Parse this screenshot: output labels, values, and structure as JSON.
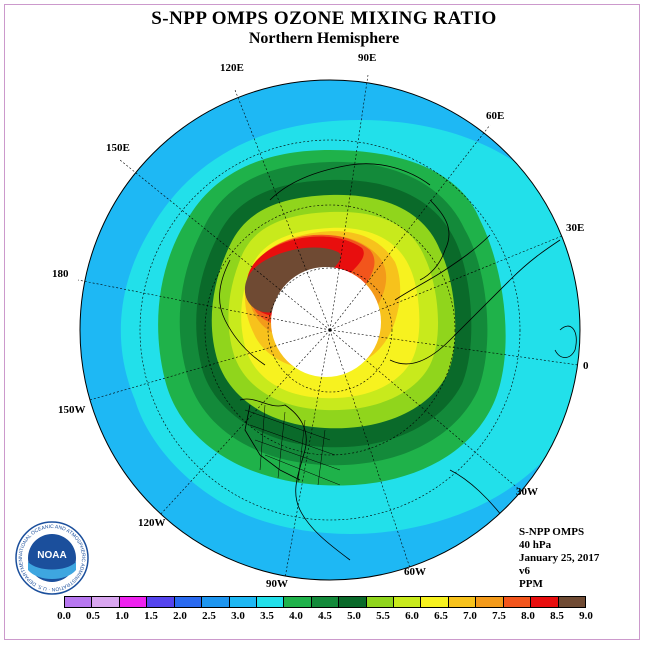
{
  "header": {
    "title": "S-NPP OMPS OZONE MIXING RATIO",
    "subtitle": "Northern Hemisphere"
  },
  "map": {
    "projection": "north polar stereographic",
    "longitude_labels": [
      {
        "text": "90E",
        "lon": 90
      },
      {
        "text": "60E",
        "lon": 60
      },
      {
        "text": "30E",
        "lon": 30
      },
      {
        "text": "0",
        "lon": 0
      },
      {
        "text": "30W",
        "lon": -30
      },
      {
        "text": "60W",
        "lon": -60
      },
      {
        "text": "90W",
        "lon": -90
      },
      {
        "text": "120W",
        "lon": -120
      },
      {
        "text": "150W",
        "lon": -150
      },
      {
        "text": "180",
        "lon": 180
      },
      {
        "text": "150E",
        "lon": 150
      },
      {
        "text": "120E",
        "lon": 120
      }
    ]
  },
  "info": {
    "instrument": "S-NPP OMPS",
    "level": "40 hPa",
    "date": "January 25, 2017",
    "version": "v6",
    "units": "PPM"
  },
  "colorbar": {
    "ticks": [
      "0.0",
      "0.5",
      "1.0",
      "1.5",
      "2.0",
      "2.5",
      "3.0",
      "3.5",
      "4.0",
      "4.5",
      "5.0",
      "5.5",
      "6.0",
      "6.5",
      "7.0",
      "7.5",
      "8.0",
      "8.5",
      "9.0"
    ],
    "colors": [
      "#b777f0",
      "#d9a6f0",
      "#ee22ee",
      "#5544ee",
      "#2a6af0",
      "#1e96f0",
      "#1eb8f4",
      "#22e0ea",
      "#1fb24a",
      "#138a3a",
      "#0a6a2a",
      "#90d51c",
      "#c8ea1c",
      "#f7f21f",
      "#f7c21c",
      "#f39a1a",
      "#f2551c",
      "#e80e0e",
      "#6f4a33"
    ]
  },
  "logo": {
    "text": "NOAA",
    "ring_text": "NATIONAL OCEANIC AND ATMOSPHERIC ADMINISTRATION · U.S. DEPARTMENT OF COMMERCE"
  }
}
